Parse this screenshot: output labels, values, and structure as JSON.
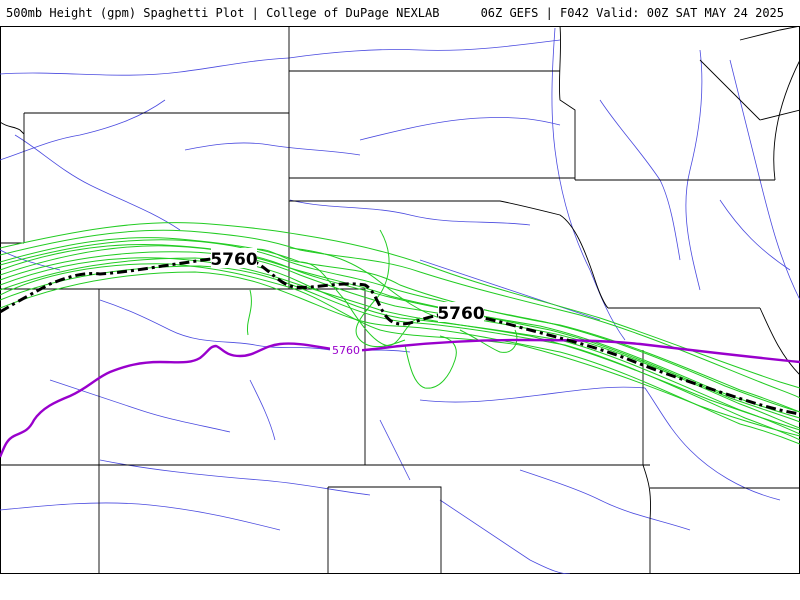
{
  "header": {
    "left_text": "500mb Height (gpm) Spaghetti Plot | College of DuPage NEXLAB",
    "right_text": "06Z GEFS | F042 Valid: 00Z SAT MAY 24 2025"
  },
  "map": {
    "contour_labels": {
      "mean_label_west": "5760",
      "mean_label_east": "5760",
      "reference_label": "5760"
    },
    "colors": {
      "member_contours": "#22cc22",
      "ensemble_mean": "#000000",
      "reference_contour": "#9900cc",
      "rivers": "#4a4adf",
      "borders": "#000000"
    }
  }
}
